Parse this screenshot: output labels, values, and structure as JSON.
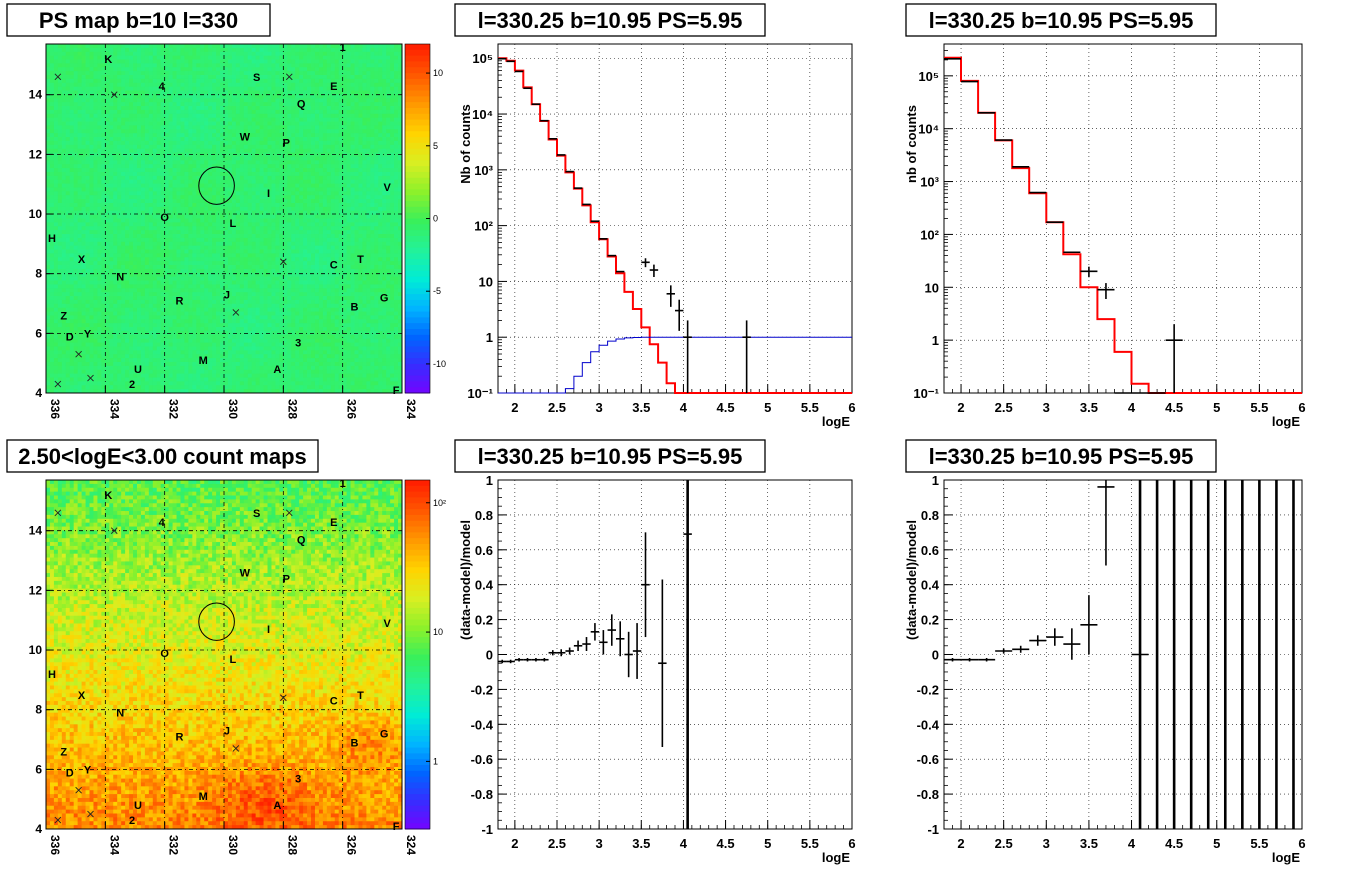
{
  "colors": {
    "black": "#000000",
    "red": "#ff0000",
    "blue": "#0000cc",
    "grid": "#000000",
    "map_green": "#2bf26a",
    "palette": [
      "#7a00ff",
      "#3a2bff",
      "#0064ff",
      "#00b4ff",
      "#00ecd6",
      "#22f29a",
      "#39f05b",
      "#8cf12b",
      "#d8ef22",
      "#ffd400",
      "#ff9a00",
      "#ff5a00",
      "#ff2000"
    ]
  },
  "chart_data": [
    {
      "id": "ps-map",
      "type": "heatmap",
      "title": "PS map b=10 l=330",
      "x_ticks": [
        "336",
        "334",
        "332",
        "330",
        "328",
        "326",
        "324"
      ],
      "y_ticks": [
        "4",
        "6",
        "8",
        "10",
        "12",
        "14"
      ],
      "xlim": [
        336,
        324
      ],
      "ylim": [
        4,
        15.7
      ],
      "palette_ticks": [
        "-10",
        "-5",
        "0",
        "5",
        "10"
      ],
      "palette_range": [
        -12,
        12
      ],
      "circle": {
        "l": 330.25,
        "b": 10.95,
        "r": 0.5
      },
      "sources": [
        {
          "label": "K",
          "l": 333.9,
          "b": 15.2
        },
        {
          "label": "1",
          "l": 326.0,
          "b": 15.6
        },
        {
          "label": "4",
          "l": 332.1,
          "b": 14.3
        },
        {
          "label": "S",
          "l": 328.9,
          "b": 14.6
        },
        {
          "label": "E",
          "l": 326.3,
          "b": 14.3
        },
        {
          "label": "Q",
          "l": 327.4,
          "b": 13.7
        },
        {
          "label": "W",
          "l": 329.3,
          "b": 12.6
        },
        {
          "label": "P",
          "l": 327.9,
          "b": 12.4
        },
        {
          "label": "I",
          "l": 328.5,
          "b": 10.7
        },
        {
          "label": "V",
          "l": 324.5,
          "b": 10.9
        },
        {
          "label": "O",
          "l": 332.0,
          "b": 9.9
        },
        {
          "label": "L",
          "l": 329.7,
          "b": 9.7
        },
        {
          "label": "H",
          "l": 335.8,
          "b": 9.2
        },
        {
          "label": "X",
          "l": 334.8,
          "b": 8.5
        },
        {
          "label": "C",
          "l": 326.3,
          "b": 8.3
        },
        {
          "label": "T",
          "l": 325.4,
          "b": 8.5
        },
        {
          "label": "N",
          "l": 333.5,
          "b": 7.9
        },
        {
          "label": "R",
          "l": 331.5,
          "b": 7.1
        },
        {
          "label": "J",
          "l": 329.9,
          "b": 7.3
        },
        {
          "label": "G",
          "l": 324.6,
          "b": 7.2
        },
        {
          "label": "B",
          "l": 325.6,
          "b": 6.9
        },
        {
          "label": "Z",
          "l": 335.4,
          "b": 6.6
        },
        {
          "label": "D",
          "l": 335.2,
          "b": 5.9
        },
        {
          "label": "Y",
          "l": 334.6,
          "b": 6.0
        },
        {
          "label": "3",
          "l": 327.5,
          "b": 5.7
        },
        {
          "label": "M",
          "l": 330.7,
          "b": 5.1
        },
        {
          "label": "U",
          "l": 332.9,
          "b": 4.8
        },
        {
          "label": "A",
          "l": 328.2,
          "b": 4.8
        },
        {
          "label": "2",
          "l": 333.1,
          "b": 4.3
        },
        {
          "label": "F",
          "l": 324.2,
          "b": 4.1
        }
      ],
      "crosses": [
        {
          "l": 335.6,
          "b": 14.6
        },
        {
          "l": 333.7,
          "b": 14.0
        },
        {
          "l": 327.8,
          "b": 14.6
        },
        {
          "l": 328.0,
          "b": 8.4
        },
        {
          "l": 329.6,
          "b": 6.7
        },
        {
          "l": 334.9,
          "b": 5.3
        },
        {
          "l": 334.5,
          "b": 4.5
        },
        {
          "l": 335.6,
          "b": 4.3
        }
      ]
    },
    {
      "id": "count-map",
      "type": "heatmap",
      "title": "2.50<logE<3.00 count maps",
      "x_ticks": [
        "336",
        "334",
        "332",
        "330",
        "328",
        "326",
        "324"
      ],
      "y_ticks": [
        "4",
        "6",
        "8",
        "10",
        "12",
        "14"
      ],
      "xlim": [
        336,
        324
      ],
      "ylim": [
        4,
        15.7
      ],
      "palette_ticks": [
        "1",
        "10",
        "10²"
      ],
      "log_scale": true,
      "palette_range": [
        0.3,
        150
      ],
      "circle": {
        "l": 330.25,
        "b": 10.95,
        "r": 0.5
      },
      "sources": "same as ps-map",
      "crosses": "same as ps-map"
    },
    {
      "id": "spectrum-1",
      "type": "histogram",
      "title": "l=330.25 b=10.95 PS=5.95",
      "xlabel": "logE",
      "ylabel": "Nb of counts",
      "ylog": true,
      "xlim": [
        1.8,
        6.0
      ],
      "ylim": [
        0.1,
        180000
      ],
      "x_ticks": [
        "2",
        "2.5",
        "3",
        "3.5",
        "4",
        "4.5",
        "5",
        "5.5",
        "6"
      ],
      "y_ticks": [
        "10⁻¹",
        "1",
        "10",
        "10²",
        "10³",
        "10⁴",
        "10⁵"
      ],
      "bin_width": 0.1,
      "bin_start": 1.8,
      "model_red": [
        100000,
        90000,
        60000,
        30000,
        15000,
        7500,
        3500,
        1800,
        900,
        460,
        230,
        115,
        57,
        28,
        14,
        6.5,
        3.2,
        1.5,
        0.75,
        0.35,
        0.15,
        0.1,
        0.1,
        0.1,
        0.1,
        0.1,
        0.1,
        0.1,
        0.1,
        0.1,
        0.1,
        0.1,
        0.1,
        0.1,
        0.1,
        0.1,
        0.1,
        0.1,
        0.1,
        0.1,
        0.1,
        0.1
      ],
      "efficiency_blue": [
        0.1,
        0.1,
        0.1,
        0.1,
        0.1,
        0.1,
        0.1,
        0.1,
        0.12,
        0.2,
        0.35,
        0.55,
        0.72,
        0.85,
        0.93,
        0.97,
        0.99,
        1,
        1,
        1,
        1,
        1,
        1,
        1,
        1,
        1,
        1,
        1,
        1,
        1,
        1,
        1,
        1,
        1,
        1,
        1,
        1,
        1,
        1,
        1,
        1,
        1
      ],
      "data_points": [
        {
          "x": 1.85,
          "y": 98000,
          "ey": 0
        },
        {
          "x": 1.95,
          "y": 88000,
          "ey": 0
        },
        {
          "x": 2.05,
          "y": 58000,
          "ey": 0
        },
        {
          "x": 2.15,
          "y": 29000,
          "ey": 0
        },
        {
          "x": 2.25,
          "y": 15000,
          "ey": 0
        },
        {
          "x": 2.35,
          "y": 7600,
          "ey": 0
        },
        {
          "x": 2.45,
          "y": 3600,
          "ey": 0
        },
        {
          "x": 2.55,
          "y": 1850,
          "ey": 0
        },
        {
          "x": 2.65,
          "y": 930,
          "ey": 0
        },
        {
          "x": 2.75,
          "y": 470,
          "ey": 0
        },
        {
          "x": 2.85,
          "y": 240,
          "ey": 0
        },
        {
          "x": 2.95,
          "y": 120,
          "ey": 0
        },
        {
          "x": 3.05,
          "y": 58,
          "ey": 0
        },
        {
          "x": 3.15,
          "y": 29,
          "ey": 0
        },
        {
          "x": 3.25,
          "y": 15,
          "ey": 0
        },
        {
          "x": 3.55,
          "y": 22,
          "ey": 4
        },
        {
          "x": 3.65,
          "y": 16,
          "ey": 4
        },
        {
          "x": 3.85,
          "y": 6,
          "ey": 2.5
        },
        {
          "x": 3.95,
          "y": 3,
          "ey": 1.7
        },
        {
          "x": 4.05,
          "y": 1,
          "ey": 1
        },
        {
          "x": 4.75,
          "y": 1,
          "ey": 1
        }
      ]
    },
    {
      "id": "spectrum-2",
      "type": "histogram",
      "title": "l=330.25 b=10.95 PS=5.95",
      "xlabel": "logE",
      "ylabel": "nb of counts",
      "ylog": true,
      "xlim": [
        1.8,
        6.0
      ],
      "ylim": [
        0.1,
        400000
      ],
      "x_ticks": [
        "2",
        "2.5",
        "3",
        "3.5",
        "4",
        "4.5",
        "5",
        "5.5",
        "6"
      ],
      "y_ticks": [
        "10⁻¹",
        "1",
        "10",
        "10²",
        "10³",
        "10⁴",
        "10⁵"
      ],
      "bin_width": 0.2,
      "bin_start": 1.8,
      "model_red": [
        220000,
        80000,
        20000,
        6000,
        1800,
        600,
        170,
        42,
        10,
        2.5,
        0.6,
        0.15,
        0.1,
        0.1,
        0.1,
        0.1,
        0.1,
        0.1,
        0.1,
        0.1,
        0.1
      ],
      "data_points": [
        {
          "x": 1.9,
          "y": 210000,
          "ey": 0
        },
        {
          "x": 2.1,
          "y": 78000,
          "ey": 0
        },
        {
          "x": 2.3,
          "y": 20000,
          "ey": 0
        },
        {
          "x": 2.5,
          "y": 6100,
          "ey": 0
        },
        {
          "x": 2.7,
          "y": 1900,
          "ey": 0
        },
        {
          "x": 2.9,
          "y": 620,
          "ey": 0
        },
        {
          "x": 3.1,
          "y": 170,
          "ey": 0
        },
        {
          "x": 3.3,
          "y": 46,
          "ey": 0
        },
        {
          "x": 3.5,
          "y": 20,
          "ey": 4.5
        },
        {
          "x": 3.7,
          "y": 9,
          "ey": 3
        },
        {
          "x": 3.9,
          "y": 0.1,
          "ey": 0
        },
        {
          "x": 4.1,
          "y": 0.1,
          "ey": 0
        },
        {
          "x": 4.3,
          "y": 0.1,
          "ey": 0
        },
        {
          "x": 4.5,
          "y": 1,
          "ey": 1
        }
      ]
    },
    {
      "id": "residual-1",
      "type": "scatter",
      "title": "l=330.25 b=10.95 PS=5.95",
      "xlabel": "logE",
      "ylabel": "(data-model)/model",
      "xlim": [
        1.8,
        6.0
      ],
      "ylim": [
        -1,
        1
      ],
      "x_ticks": [
        "2",
        "2.5",
        "3",
        "3.5",
        "4",
        "4.5",
        "5",
        "5.5",
        "6"
      ],
      "y_ticks": [
        "-1",
        "-0.8",
        "-0.6",
        "-0.4",
        "-0.2",
        "0",
        "0.2",
        "0.4",
        "0.6",
        "0.8",
        "1"
      ],
      "points": [
        {
          "x": 1.85,
          "y": -0.04,
          "ey": 0.01,
          "ex": 0.05
        },
        {
          "x": 1.95,
          "y": -0.04,
          "ey": 0.01,
          "ex": 0.05
        },
        {
          "x": 2.05,
          "y": -0.03,
          "ey": 0.01,
          "ex": 0.05
        },
        {
          "x": 2.15,
          "y": -0.03,
          "ey": 0.01,
          "ex": 0.05
        },
        {
          "x": 2.25,
          "y": -0.03,
          "ey": 0.01,
          "ex": 0.05
        },
        {
          "x": 2.35,
          "y": -0.03,
          "ey": 0.01,
          "ex": 0.05
        },
        {
          "x": 2.45,
          "y": 0.01,
          "ey": 0.015,
          "ex": 0.05
        },
        {
          "x": 2.55,
          "y": 0.01,
          "ey": 0.02,
          "ex": 0.05
        },
        {
          "x": 2.65,
          "y": 0.02,
          "ey": 0.02,
          "ex": 0.05
        },
        {
          "x": 2.75,
          "y": 0.05,
          "ey": 0.03,
          "ex": 0.05
        },
        {
          "x": 2.85,
          "y": 0.06,
          "ey": 0.04,
          "ex": 0.05
        },
        {
          "x": 2.95,
          "y": 0.13,
          "ey": 0.05,
          "ex": 0.05
        },
        {
          "x": 3.05,
          "y": 0.07,
          "ey": 0.07,
          "ex": 0.05
        },
        {
          "x": 3.15,
          "y": 0.14,
          "ey": 0.09,
          "ex": 0.05
        },
        {
          "x": 3.25,
          "y": 0.09,
          "ey": 0.1,
          "ex": 0.05
        },
        {
          "x": 3.35,
          "y": 0.0,
          "ey": 0.13,
          "ex": 0.05
        },
        {
          "x": 3.45,
          "y": 0.02,
          "ey": 0.16,
          "ex": 0.05
        },
        {
          "x": 3.55,
          "y": 0.4,
          "ey": 0.3,
          "ex": 0.05
        },
        {
          "x": 3.75,
          "y": -0.05,
          "ey": 0.48,
          "ex": 0.05
        },
        {
          "x": 4.05,
          "y": 0.69,
          "ey": 2.0,
          "ex": 0.05
        }
      ]
    },
    {
      "id": "residual-2",
      "type": "scatter",
      "title": "l=330.25 b=10.95 PS=5.95",
      "xlabel": "logE",
      "ylabel": "(data-model)/model",
      "xlim": [
        1.8,
        6.0
      ],
      "ylim": [
        -1,
        1
      ],
      "x_ticks": [
        "2",
        "2.5",
        "3",
        "3.5",
        "4",
        "4.5",
        "5",
        "5.5",
        "6"
      ],
      "y_ticks": [
        "-1",
        "-0.8",
        "-0.6",
        "-0.4",
        "-0.2",
        "0",
        "0.2",
        "0.4",
        "0.6",
        "0.8",
        "1"
      ],
      "points": [
        {
          "x": 1.9,
          "y": -0.03,
          "ey": 0.01,
          "ex": 0.1
        },
        {
          "x": 2.1,
          "y": -0.03,
          "ey": 0.01,
          "ex": 0.1
        },
        {
          "x": 2.3,
          "y": -0.03,
          "ey": 0.01,
          "ex": 0.1
        },
        {
          "x": 2.5,
          "y": 0.02,
          "ey": 0.015,
          "ex": 0.1
        },
        {
          "x": 2.7,
          "y": 0.03,
          "ey": 0.02,
          "ex": 0.1
        },
        {
          "x": 2.9,
          "y": 0.08,
          "ey": 0.03,
          "ex": 0.1
        },
        {
          "x": 3.1,
          "y": 0.1,
          "ey": 0.05,
          "ex": 0.1
        },
        {
          "x": 3.3,
          "y": 0.06,
          "ey": 0.09,
          "ex": 0.1
        },
        {
          "x": 3.5,
          "y": 0.17,
          "ey": 0.17,
          "ex": 0.1
        },
        {
          "x": 3.7,
          "y": 0.96,
          "ey": 0.45,
          "ex": 0.1
        },
        {
          "x": 4.1,
          "y": 0.0,
          "ey": 2.0,
          "ex": 0.1
        },
        {
          "x": 4.3,
          "y": -0.5,
          "ey": 2.0,
          "ex": 0
        },
        {
          "x": 4.5,
          "y": -0.5,
          "ey": 2.0,
          "ex": 0
        },
        {
          "x": 4.7,
          "y": -0.5,
          "ey": 2.0,
          "ex": 0
        },
        {
          "x": 4.9,
          "y": -0.5,
          "ey": 2.0,
          "ex": 0
        },
        {
          "x": 5.1,
          "y": -0.5,
          "ey": 2.0,
          "ex": 0
        },
        {
          "x": 5.3,
          "y": -0.5,
          "ey": 2.0,
          "ex": 0
        },
        {
          "x": 5.5,
          "y": -0.5,
          "ey": 2.0,
          "ex": 0
        },
        {
          "x": 5.7,
          "y": -0.5,
          "ey": 2.0,
          "ex": 0
        },
        {
          "x": 5.9,
          "y": -0.5,
          "ey": 2.0,
          "ex": 0
        }
      ]
    }
  ]
}
